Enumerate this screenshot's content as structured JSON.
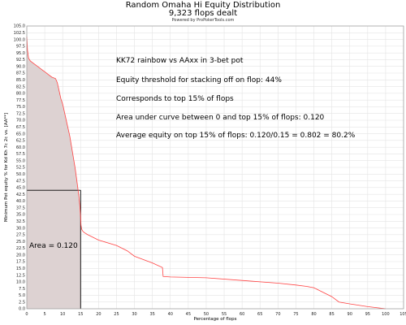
{
  "chart_data": {
    "type": "area",
    "title": "Random Omaha Hi Equity Distribution",
    "subtitle": "9,323 flops dealt",
    "credit": "Powered by ProPokerTools.com",
    "xlabel": "Percentage of flops",
    "ylabel": "Minimum Pot equity % for Kd Kh 7c 2c vs. [AA**]",
    "xlim": [
      0,
      105
    ],
    "ylim": [
      0,
      105
    ],
    "x_ticks": [
      0,
      5,
      10,
      15,
      20,
      25,
      30,
      35,
      40,
      45,
      50,
      55,
      60,
      65,
      70,
      75,
      80,
      85,
      90,
      95,
      100,
      105
    ],
    "y_ticks": [
      0,
      2.5,
      5,
      7.5,
      10,
      12.5,
      15,
      17.5,
      20,
      22.5,
      25,
      27.5,
      30,
      32.5,
      35,
      37.5,
      40,
      42.5,
      45,
      47.5,
      50,
      52.5,
      55,
      57.5,
      60,
      62.5,
      65,
      67.5,
      70,
      72.5,
      75,
      77.5,
      80,
      82.5,
      85,
      87.5,
      90,
      92.5,
      95,
      97.5,
      100,
      102.5,
      105
    ],
    "grid": true,
    "line_color": "#ff4444",
    "fill_color": "#ddd2d2",
    "threshold_line": {
      "x": 15,
      "y": 44
    },
    "series": [
      {
        "x": [
          0,
          0.2,
          0.5,
          1,
          2,
          3,
          4,
          5,
          6,
          7,
          8,
          8.5,
          9,
          9.5,
          10,
          10.5,
          11,
          11.5,
          12,
          12.5,
          13,
          13.5,
          14,
          14.5,
          14.8,
          15,
          15.1,
          15.3,
          15.6,
          16,
          17,
          20,
          25,
          28,
          30,
          35,
          37.8,
          38,
          40,
          50,
          60,
          70,
          75,
          78,
          80,
          85,
          87,
          90,
          95,
          100
        ],
        "y": [
          101,
          96,
          93,
          92,
          91,
          90,
          89,
          88,
          87,
          86,
          85.5,
          84,
          81,
          78,
          76,
          73,
          70,
          67,
          64,
          60,
          56,
          52,
          47,
          42,
          38,
          34,
          31,
          29.5,
          28.8,
          28.3,
          27.5,
          25.5,
          23.5,
          21.5,
          19.5,
          17,
          15.3,
          12,
          11.8,
          11.5,
          10.5,
          9.5,
          8.8,
          8.3,
          7.8,
          4.5,
          2.5,
          1.8,
          0.8,
          0
        ]
      }
    ],
    "annotations": [
      "KK72 rainbow vs AAxx in 3-bet pot",
      "Equity threshold for stacking off on flop: 44%",
      "Corresponds to top 15% of flops",
      "Area under curve between 0 and top 15% of flops: 0.120",
      "Average equity on top 15% of flops: 0.120/0.15 = 0.802 = 80.2%"
    ],
    "area_label": "Area = 0.120"
  }
}
